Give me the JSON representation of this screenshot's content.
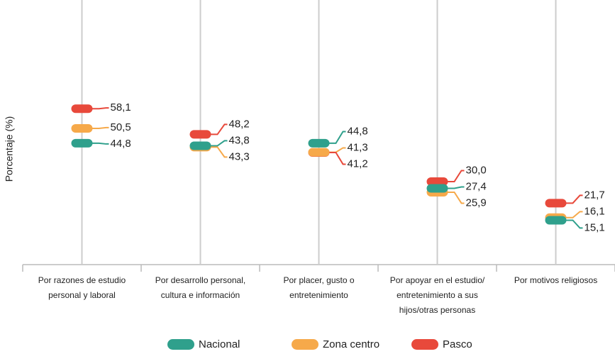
{
  "chart_data": {
    "type": "dot",
    "y_label": "Porcentaje (%)",
    "categories": [
      "Por razones de estudio personal y laboral",
      "Por desarrollo personal, cultura e información",
      "Por placer, gusto o entretenimiento",
      "Por apoyar en el estudio/ entretenimiento a sus hijos/otras personas",
      "Por motivos religiosos"
    ],
    "series": [
      {
        "name": "Nacional",
        "color": "#2fa08c",
        "values": [
          44.8,
          43.8,
          44.8,
          27.4,
          15.1
        ],
        "value_labels": [
          "44,8",
          "43,8",
          "44,8",
          "27,4",
          "15,1"
        ]
      },
      {
        "name": "Zona centro",
        "color": "#f6a94a",
        "values": [
          50.5,
          43.3,
          41.3,
          25.9,
          16.1
        ],
        "value_labels": [
          "50,5",
          "43,3",
          "41,3",
          "25,9",
          "16,1"
        ]
      },
      {
        "name": "Pasco",
        "color": "#e8493b",
        "values": [
          58.1,
          48.2,
          41.2,
          30.0,
          21.7
        ],
        "value_labels": [
          "58,1",
          "48,2",
          "41,2",
          "30,0",
          "21,7"
        ]
      }
    ],
    "ylim": [
      -2,
      100
    ]
  }
}
